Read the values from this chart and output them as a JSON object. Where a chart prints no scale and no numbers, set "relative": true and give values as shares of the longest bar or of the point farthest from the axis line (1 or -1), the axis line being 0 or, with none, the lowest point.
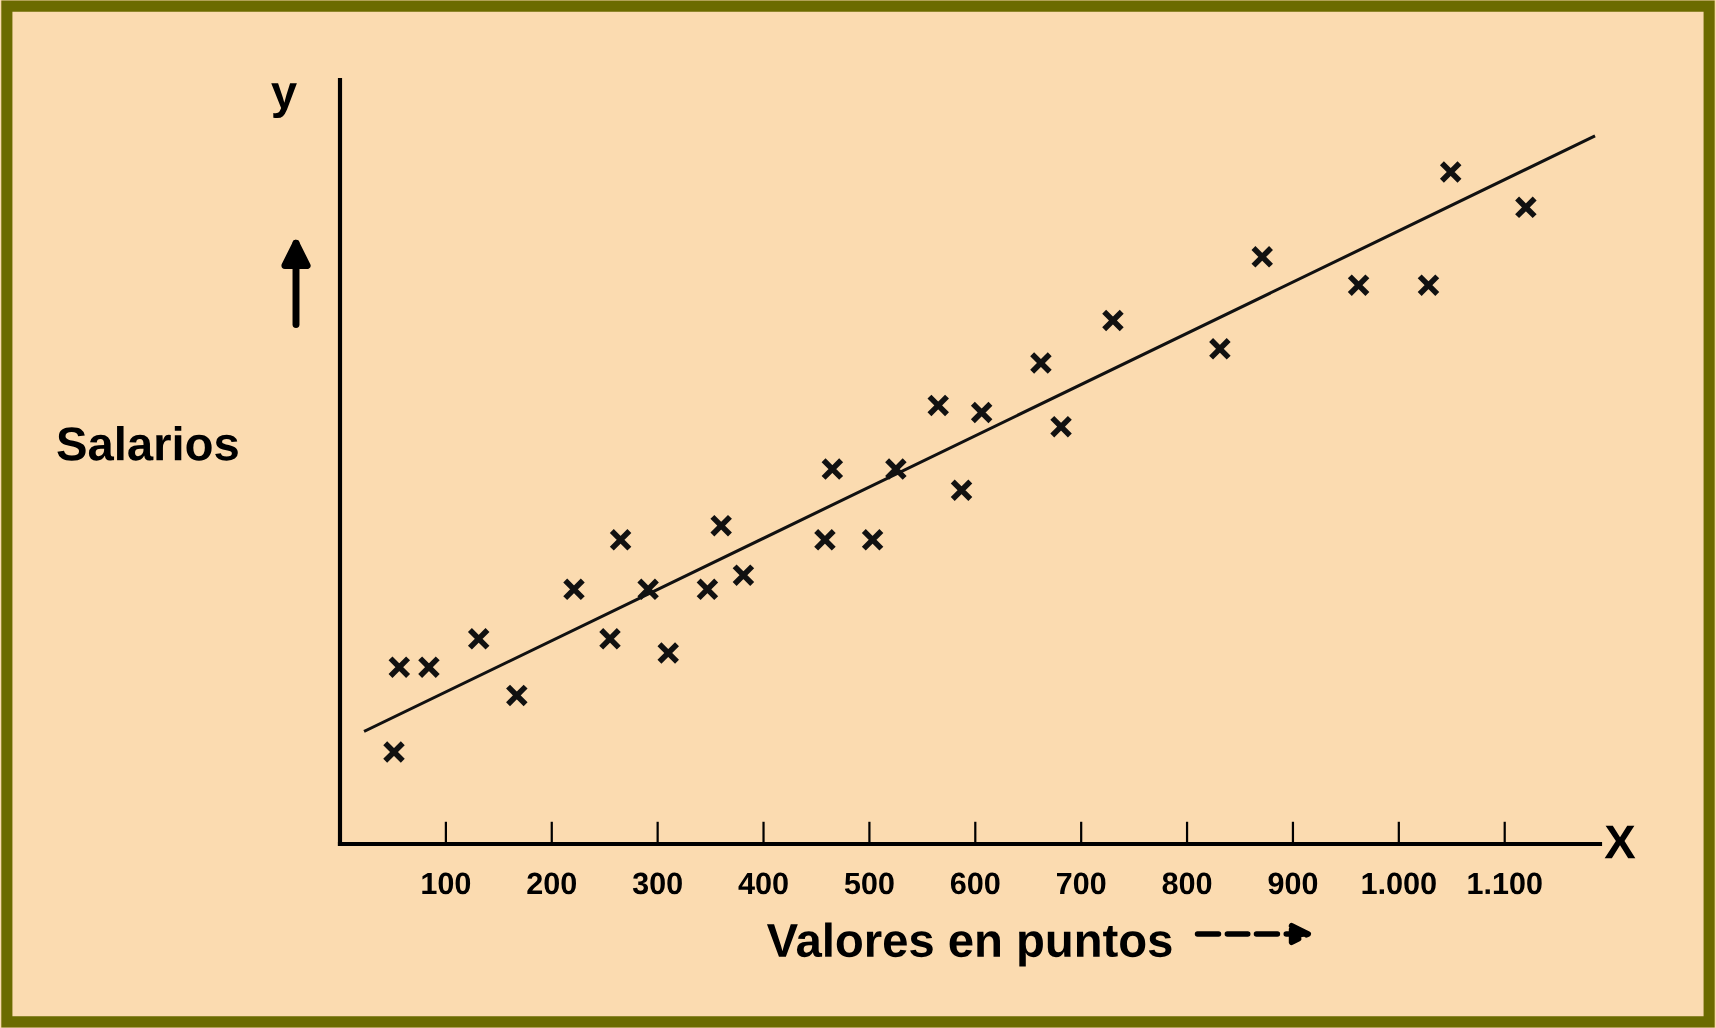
{
  "chart_data": {
    "type": "scatter",
    "relative": true,
    "xlabel": "Valores en puntos",
    "ylabel": "Salarios",
    "annotations": [
      "y",
      "X"
    ],
    "xlim": [
      0,
      1190
    ],
    "xticks": [
      100,
      200,
      300,
      400,
      500,
      600,
      700,
      800,
      900,
      {
        "value": 1000,
        "label": "1.000"
      },
      {
        "value": 1100,
        "label": "1.100"
      }
    ],
    "grid": false,
    "legend": false,
    "marker": "cross",
    "series": [
      {
        "color": "#111111",
        "x": [
          51,
          56,
          84,
          131,
          167,
          221,
          255,
          265,
          291,
          310,
          347,
          360,
          381,
          458,
          465,
          503,
          525,
          565,
          587,
          606,
          662,
          681,
          730,
          831,
          871,
          962,
          1028,
          1049,
          1120
        ],
        "values": [
          0.13,
          0.25,
          0.25,
          0.29,
          0.21,
          0.36,
          0.29,
          0.43,
          0.36,
          0.27,
          0.36,
          0.45,
          0.38,
          0.43,
          0.53,
          0.43,
          0.53,
          0.62,
          0.5,
          0.61,
          0.68,
          0.59,
          0.74,
          0.7,
          0.83,
          0.79,
          0.79,
          0.95,
          0.9
        ]
      },
      {
        "type": "line",
        "color": "#111111",
        "marker": "none",
        "x": [
          24,
          1184
        ],
        "values": [
          0.16,
          1
        ]
      }
    ]
  }
}
